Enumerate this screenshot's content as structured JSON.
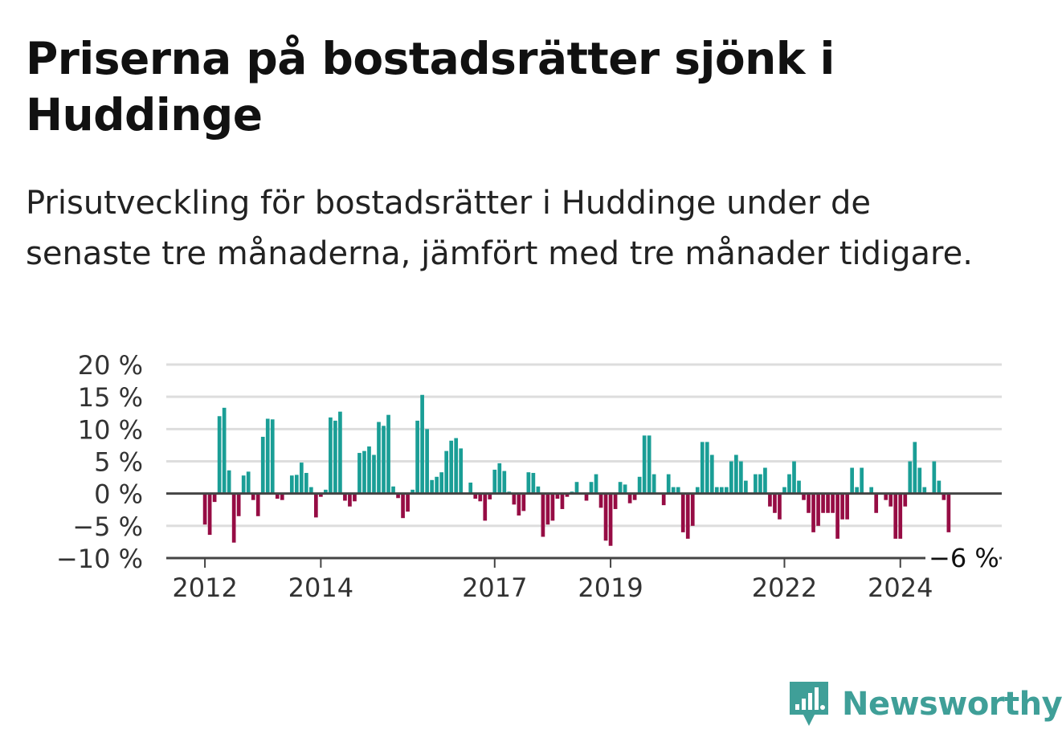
{
  "title": "Priserna på bostadsrätter sjönk i Huddinge",
  "subtitle": "Prisutveckling för bostadsrätter i Huddinge under de senaste tre månaderna, jämfört med tre månader tidigare.",
  "brand": {
    "name": "Newsworthy",
    "icon": "newsworthy-logo-icon"
  },
  "colors": {
    "positive": "#1a9e96",
    "negative": "#960c44",
    "grid": "#dddddd",
    "zero_line": "#444444",
    "brand": "#3f9f98"
  },
  "chart_data": {
    "type": "bar",
    "title": "",
    "xlabel": "",
    "ylabel": "",
    "ylim": [
      -10,
      20
    ],
    "y_ticks": [
      {
        "value": 20,
        "label": "20 %"
      },
      {
        "value": 15,
        "label": "15 %"
      },
      {
        "value": 10,
        "label": "10 %"
      },
      {
        "value": 5,
        "label": "5 %"
      },
      {
        "value": 0,
        "label": "0 %"
      },
      {
        "value": -5,
        "label": "−5 %"
      },
      {
        "value": -10,
        "label": "−10 %"
      }
    ],
    "x_ticks": [
      {
        "value": "2012-01",
        "label": "2012"
      },
      {
        "value": "2014-01",
        "label": "2014"
      },
      {
        "value": "2017-01",
        "label": "2017"
      },
      {
        "value": "2019-01",
        "label": "2019"
      },
      {
        "value": "2022-01",
        "label": "2022"
      },
      {
        "value": "2024-01",
        "label": "2024"
      }
    ],
    "x_range": [
      "2011-05",
      "2025-10"
    ],
    "start": "2012-01",
    "frequency": "monthly",
    "grid": true,
    "last_value_label": "−6 %",
    "values": [
      -4.8,
      -6.4,
      -1.3,
      12.0,
      13.3,
      3.6,
      -7.6,
      -3.5,
      2.8,
      3.4,
      -1.0,
      -3.5,
      8.8,
      11.6,
      11.5,
      -0.8,
      -1.0,
      0,
      2.8,
      2.9,
      4.8,
      3.2,
      1.0,
      -3.7,
      -0.5,
      0.6,
      11.8,
      11.3,
      12.7,
      -1.1,
      -2.0,
      -1.2,
      6.3,
      6.6,
      7.3,
      6.0,
      11.1,
      10.5,
      12.2,
      1.1,
      -0.7,
      -3.8,
      -2.8,
      0.6,
      11.3,
      15.3,
      10.0,
      2.1,
      2.6,
      3.3,
      6.6,
      8.2,
      8.6,
      7.0,
      0,
      1.7,
      -0.8,
      -1.2,
      -4.2,
      -0.9,
      3.7,
      4.7,
      3.5,
      0.3,
      -1.7,
      -3.4,
      -2.7,
      3.3,
      3.2,
      1.1,
      -6.7,
      -4.8,
      -4.2,
      -0.8,
      -2.4,
      -0.5,
      0.3,
      1.8,
      0,
      -1.1,
      1.8,
      3.0,
      -2.2,
      -7.3,
      -8.1,
      -2.4,
      1.8,
      1.4,
      -1.5,
      -1.0,
      2.6,
      9.0,
      9.0,
      3.0,
      0,
      -1.8,
      3.0,
      1.0,
      1.0,
      -6.0,
      -7.0,
      -5.0,
      1.0,
      8.0,
      8.0,
      6.0,
      1.0,
      1.0,
      1.0,
      5.0,
      6.0,
      5.0,
      2.0,
      0,
      3.0,
      3.0,
      4.0,
      -2.0,
      -3.0,
      -4.0,
      1.0,
      3.0,
      5.0,
      2.0,
      -1.0,
      -3.0,
      -6.0,
      -5.0,
      -3.0,
      -3.0,
      -3.0,
      -7.0,
      -4.0,
      -4.0,
      4.0,
      1.0,
      4.0,
      0,
      1.0,
      -3.0,
      0,
      -1.0,
      -2.0,
      -7.0,
      -7.0,
      -2.0,
      5.0,
      8.0,
      4.0,
      1.0,
      0,
      5.0,
      2.0,
      -1.0,
      -6.0
    ]
  }
}
